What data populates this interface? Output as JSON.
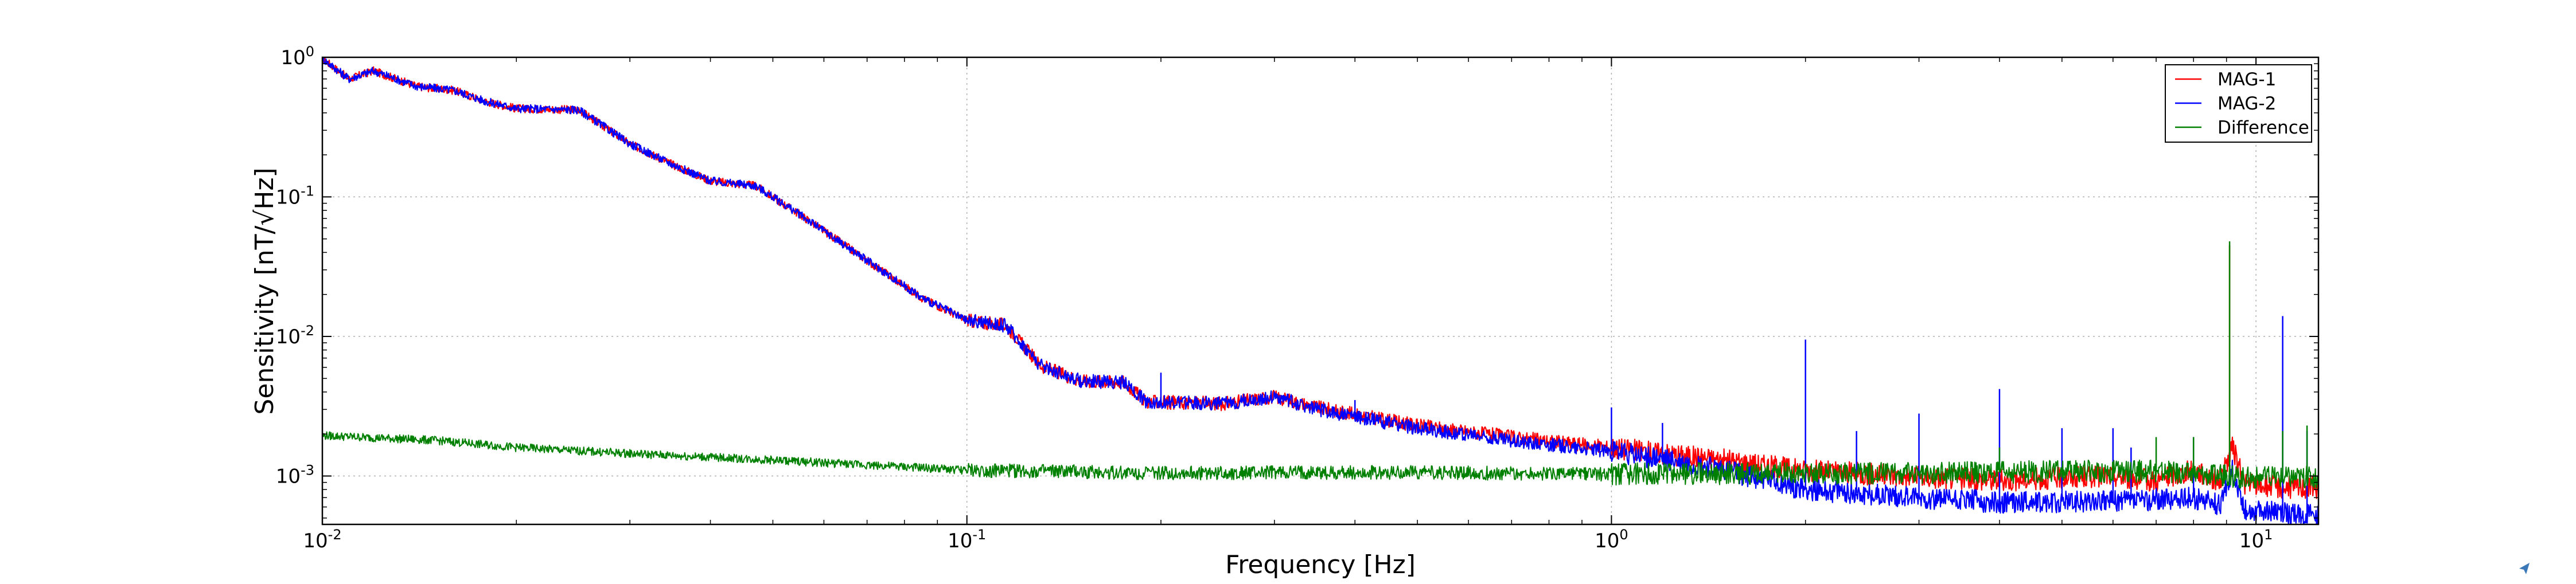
{
  "chart_data": {
    "type": "line",
    "title": "",
    "xlabel": "Frequency [Hz]",
    "ylabel": "Sensitivity [nT/√Hz]",
    "xscale": "log",
    "yscale": "log",
    "xlim": [
      0.01,
      12.5
    ],
    "ylim": [
      0.00045,
      1.0
    ],
    "grid": true,
    "legend_position": "top-right",
    "x_ticks": [
      {
        "base": "10",
        "exp": "-2",
        "value": 0.01
      },
      {
        "base": "10",
        "exp": "-1",
        "value": 0.1
      },
      {
        "base": "10",
        "exp": "0",
        "value": 1
      },
      {
        "base": "10",
        "exp": "1",
        "value": 10
      }
    ],
    "y_ticks": [
      {
        "base": "10",
        "exp": "0",
        "value": 1.0
      },
      {
        "base": "10",
        "exp": "-1",
        "value": 0.1
      },
      {
        "base": "10",
        "exp": "-2",
        "value": 0.01
      },
      {
        "base": "10",
        "exp": "-3",
        "value": 0.001
      }
    ],
    "series": [
      {
        "name": "MAG-1",
        "color": "#ff0000",
        "points": [
          [
            0.01,
            0.98
          ],
          [
            0.011,
            0.7
          ],
          [
            0.012,
            0.8
          ],
          [
            0.014,
            0.62
          ],
          [
            0.016,
            0.58
          ],
          [
            0.018,
            0.48
          ],
          [
            0.02,
            0.43
          ],
          [
            0.025,
            0.42
          ],
          [
            0.03,
            0.24
          ],
          [
            0.035,
            0.17
          ],
          [
            0.04,
            0.13
          ],
          [
            0.047,
            0.12
          ],
          [
            0.055,
            0.075
          ],
          [
            0.07,
            0.035
          ],
          [
            0.085,
            0.019
          ],
          [
            0.1,
            0.013
          ],
          [
            0.115,
            0.012
          ],
          [
            0.13,
            0.0062
          ],
          [
            0.15,
            0.0048
          ],
          [
            0.175,
            0.0047
          ],
          [
            0.19,
            0.0034
          ],
          [
            0.25,
            0.0033
          ],
          [
            0.3,
            0.0037
          ],
          [
            0.35,
            0.0031
          ],
          [
            0.5,
            0.0023
          ],
          [
            0.7,
            0.0019
          ],
          [
            1.0,
            0.0016
          ],
          [
            1.5,
            0.0013
          ],
          [
            2.0,
            0.0011
          ],
          [
            3.0,
            0.00098
          ],
          [
            4.0,
            0.00093
          ],
          [
            5.0,
            0.00097
          ],
          [
            6.0,
            0.001
          ],
          [
            7.0,
            0.00092
          ],
          [
            8.0,
            0.0011
          ],
          [
            8.8,
            0.00092
          ],
          [
            9.2,
            0.0016
          ],
          [
            9.6,
            0.00088
          ],
          [
            11.0,
            0.00083
          ],
          [
            12.5,
            0.00082
          ]
        ],
        "spikes": [
          [
            9.1,
            0.045
          ]
        ]
      },
      {
        "name": "MAG-2",
        "color": "#0000ff",
        "points": [
          [
            0.01,
            0.98
          ],
          [
            0.011,
            0.7
          ],
          [
            0.012,
            0.8
          ],
          [
            0.014,
            0.62
          ],
          [
            0.016,
            0.58
          ],
          [
            0.018,
            0.48
          ],
          [
            0.02,
            0.43
          ],
          [
            0.025,
            0.42
          ],
          [
            0.03,
            0.24
          ],
          [
            0.035,
            0.17
          ],
          [
            0.04,
            0.13
          ],
          [
            0.047,
            0.12
          ],
          [
            0.055,
            0.075
          ],
          [
            0.07,
            0.035
          ],
          [
            0.085,
            0.019
          ],
          [
            0.1,
            0.013
          ],
          [
            0.115,
            0.012
          ],
          [
            0.13,
            0.0062
          ],
          [
            0.15,
            0.0048
          ],
          [
            0.175,
            0.0047
          ],
          [
            0.19,
            0.0034
          ],
          [
            0.25,
            0.0033
          ],
          [
            0.3,
            0.0037
          ],
          [
            0.35,
            0.003
          ],
          [
            0.5,
            0.0022
          ],
          [
            0.7,
            0.0018
          ],
          [
            1.0,
            0.0015
          ],
          [
            1.5,
            0.0011
          ],
          [
            2.0,
            0.0008
          ],
          [
            3.0,
            0.0007
          ],
          [
            4.0,
            0.00065
          ],
          [
            6.0,
            0.00066
          ],
          [
            8.0,
            0.0007
          ],
          [
            8.8,
            0.00062
          ],
          [
            9.2,
            0.0011
          ],
          [
            9.6,
            0.00058
          ],
          [
            11.0,
            0.00054
          ],
          [
            12.5,
            0.00052
          ]
        ],
        "spikes": [
          [
            0.2,
            0.0055
          ],
          [
            0.4,
            0.0035
          ],
          [
            1.0,
            0.0031
          ],
          [
            1.2,
            0.0024
          ],
          [
            2.0,
            0.0095
          ],
          [
            2.4,
            0.0021
          ],
          [
            3.0,
            0.0028
          ],
          [
            4.0,
            0.0042
          ],
          [
            5.0,
            0.0022
          ],
          [
            6.0,
            0.0022
          ],
          [
            6.4,
            0.0016
          ],
          [
            8.0,
            0.0019
          ],
          [
            11.0,
            0.014
          ],
          [
            12.0,
            0.0021
          ]
        ]
      },
      {
        "name": "Difference",
        "color": "#008000",
        "points": [
          [
            0.01,
            0.00195
          ],
          [
            0.015,
            0.0018
          ],
          [
            0.02,
            0.0016
          ],
          [
            0.03,
            0.00145
          ],
          [
            0.05,
            0.0013
          ],
          [
            0.07,
            0.0012
          ],
          [
            0.1,
            0.0011
          ],
          [
            0.2,
            0.00105
          ],
          [
            0.5,
            0.00106
          ],
          [
            1.0,
            0.00103
          ],
          [
            1.5,
            0.00104
          ],
          [
            2.0,
            0.00105
          ],
          [
            3.0,
            0.00104
          ],
          [
            5.0,
            0.00108
          ],
          [
            7.0,
            0.00108
          ],
          [
            8.5,
            0.00102
          ],
          [
            9.6,
            0.00098
          ],
          [
            12.5,
            0.00098
          ]
        ],
        "spikes": [
          [
            9.1,
            0.048
          ],
          [
            4.0,
            0.0016
          ],
          [
            7.0,
            0.0019
          ],
          [
            8.0,
            0.0019
          ],
          [
            11.0,
            0.0021
          ],
          [
            12.0,
            0.0023
          ]
        ]
      }
    ]
  }
}
